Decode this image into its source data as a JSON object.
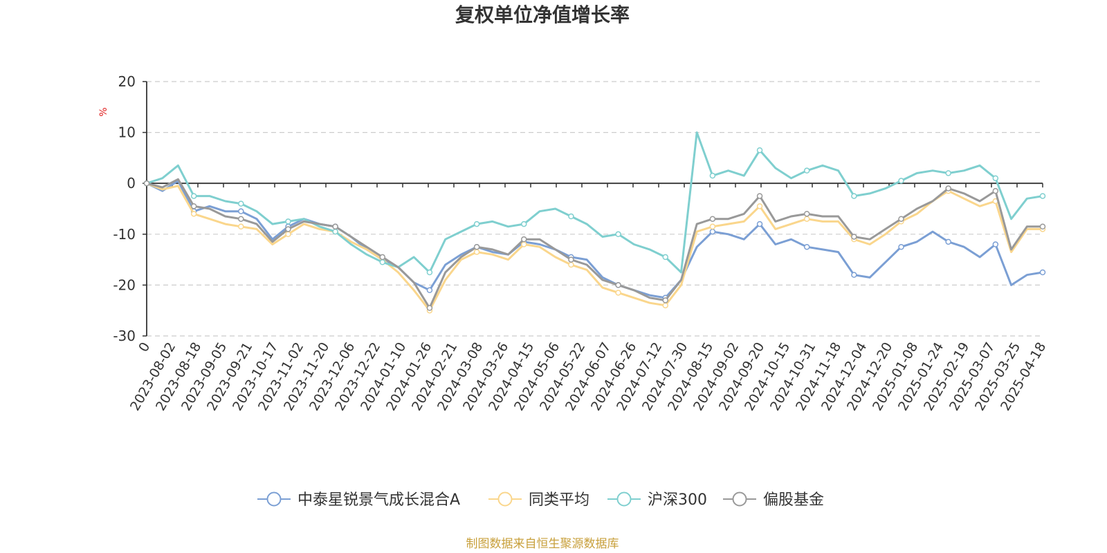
{
  "chart_data": {
    "type": "line",
    "title": "复权单位净值增长率",
    "ylabel": "%",
    "ylim": [
      -30,
      20
    ],
    "yticks": [
      20,
      10,
      0,
      -10,
      -20,
      -30
    ],
    "x_tick_labels": [
      "0",
      "2023-08-02",
      "2023-08-18",
      "2023-09-05",
      "2023-09-21",
      "2023-10-17",
      "2023-11-02",
      "2023-11-20",
      "2023-12-06",
      "2023-12-22",
      "2024-01-10",
      "2024-01-26",
      "2024-02-21",
      "2024-03-08",
      "2024-03-26",
      "2024-04-15",
      "2024-05-06",
      "2024-05-22",
      "2024-06-07",
      "2024-06-26",
      "2024-07-12",
      "2024-07-30",
      "2024-08-15",
      "2024-09-02",
      "2024-09-20",
      "2024-10-15",
      "2024-10-31",
      "2024-11-18",
      "2024-12-04",
      "2024-12-20",
      "2025-01-08",
      "2025-01-24",
      "2025-02-19",
      "2025-03-07",
      "2025-03-25",
      "2025-04-18"
    ],
    "grid": "dashed horizontal",
    "legend_position": "bottom",
    "series": [
      {
        "name": "中泰星锐景气成长混合A",
        "color": "#7b9fd4",
        "values": [
          0,
          -1.5,
          0.5,
          -5.5,
          -4.5,
          -5.5,
          -5.5,
          -7,
          -11,
          -8.5,
          -7,
          -8,
          -8.5,
          -10.5,
          -13,
          -15,
          -16.5,
          -19.5,
          -21,
          -16,
          -14,
          -12.5,
          -13.5,
          -14,
          -11.5,
          -12,
          -13,
          -14.5,
          -15,
          -18.5,
          -20,
          -21,
          -22,
          -22.5,
          -19,
          -12.5,
          -9.5,
          -10,
          -11,
          -8,
          -12,
          -11,
          -12.5,
          -13,
          -13.5,
          -18,
          -18.5,
          -15.5,
          -12.5,
          -11.5,
          -9.5,
          -11.5,
          -12.5,
          -14.5,
          -12,
          -20,
          -18,
          -17.5
        ]
      },
      {
        "name": "同类平均",
        "color": "#fad68c",
        "values": [
          0,
          -1.2,
          -0.5,
          -6,
          -7,
          -8,
          -8.5,
          -9,
          -12,
          -10,
          -8,
          -9,
          -9.5,
          -11.5,
          -13,
          -15,
          -17.5,
          -21,
          -25,
          -19,
          -15,
          -13.5,
          -14,
          -15,
          -12,
          -12.5,
          -14.5,
          -16,
          -17,
          -20.5,
          -21.5,
          -22.5,
          -23.5,
          -24,
          -20,
          -9.5,
          -8.5,
          -8,
          -7.5,
          -4.5,
          -9,
          -8,
          -7,
          -7.5,
          -7.5,
          -11,
          -12,
          -10,
          -7.5,
          -6,
          -3.5,
          -1.5,
          -3,
          -4.5,
          -3.5,
          -13.5,
          -9,
          -9
        ]
      },
      {
        "name": "沪深300",
        "color": "#7fcfcf",
        "values": [
          0,
          1,
          3.5,
          -2.5,
          -2.5,
          -3.5,
          -4,
          -5.5,
          -8,
          -7.5,
          -7,
          -8.5,
          -9.5,
          -12,
          -14,
          -15.5,
          -16.5,
          -14.5,
          -17.5,
          -11,
          -9.5,
          -8,
          -7.5,
          -8.5,
          -8,
          -5.5,
          -5,
          -6.5,
          -8,
          -10.5,
          -10,
          -12,
          -13,
          -14.5,
          -17.5,
          10,
          1.5,
          2.5,
          1.5,
          6.5,
          3,
          1,
          2.5,
          3.5,
          2.5,
          -2.5,
          -2,
          -1,
          0.5,
          2,
          2.5,
          2,
          2.5,
          3.5,
          1,
          -7,
          -3,
          -2.5
        ]
      },
      {
        "name": "偏股基金",
        "color": "#999999",
        "values": [
          0,
          -0.8,
          0.8,
          -4.5,
          -5,
          -6.5,
          -7,
          -8,
          -11.5,
          -9,
          -7.5,
          -8,
          -8.5,
          -10.5,
          -12.5,
          -14.5,
          -16.5,
          -19.5,
          -24.5,
          -17.5,
          -14.5,
          -12.5,
          -13,
          -14,
          -11,
          -11,
          -13,
          -15,
          -16,
          -19,
          -20,
          -21,
          -22.5,
          -23,
          -19,
          -8,
          -7,
          -7,
          -6,
          -2.5,
          -7.5,
          -6.5,
          -6,
          -6.5,
          -6.5,
          -10.5,
          -11,
          -9,
          -7,
          -5,
          -3.5,
          -1,
          -2,
          -3.5,
          -1.5,
          -13,
          -8.5,
          -8.5
        ]
      }
    ]
  },
  "source_text": "制图数据来自恒生聚源数据库"
}
